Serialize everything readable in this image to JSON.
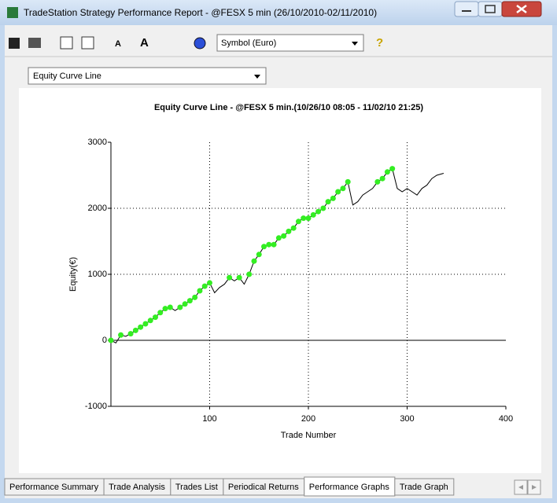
{
  "window": {
    "title": "TradeStation Strategy Performance Report - @FESX 5 min (26/10/2010-02/11/2010)"
  },
  "toolbar": {
    "symbol_select": "Symbol (Euro)"
  },
  "view_select": "Equity Curve Line",
  "chart_data": {
    "type": "line",
    "title": "Equity Curve Line - @FESX 5 min.(10/26/10 08:05 - 11/02/10 21:25)",
    "x_label": "Trade Number",
    "y_label": "Equity(€)",
    "x": [
      0,
      5,
      10,
      15,
      20,
      25,
      30,
      35,
      40,
      45,
      50,
      55,
      60,
      65,
      70,
      75,
      80,
      85,
      90,
      95,
      100,
      105,
      110,
      115,
      120,
      125,
      130,
      135,
      140,
      145,
      150,
      155,
      160,
      165,
      170,
      175,
      180,
      185,
      190,
      195,
      200,
      205,
      210,
      215,
      220,
      225,
      230,
      235,
      240,
      245,
      250,
      255,
      260,
      265,
      270,
      275,
      280,
      285,
      290,
      295,
      300,
      305,
      310,
      315,
      320,
      325,
      330,
      337
    ],
    "values": [
      0,
      -40,
      80,
      60,
      100,
      150,
      200,
      250,
      300,
      350,
      420,
      480,
      500,
      450,
      500,
      550,
      600,
      650,
      750,
      820,
      870,
      720,
      800,
      850,
      950,
      900,
      950,
      850,
      1000,
      1200,
      1300,
      1420,
      1450,
      1450,
      1550,
      1580,
      1650,
      1700,
      1800,
      1850,
      1850,
      1900,
      1950,
      2000,
      2100,
      2150,
      2250,
      2300,
      2400,
      2050,
      2100,
      2200,
      2250,
      2300,
      2400,
      2450,
      2550,
      2600,
      2300,
      2250,
      2300,
      2250,
      2200,
      2300,
      2350,
      2450,
      2500,
      2530
    ],
    "color": "#000000",
    "highlight_color": "#33ee22",
    "xlim": [
      0,
      400
    ],
    "xticks": [
      100,
      200,
      300,
      400
    ],
    "ylim": [
      -1000,
      3000
    ],
    "yticks": [
      -1000,
      0,
      1000,
      2000,
      3000
    ],
    "grid": true
  },
  "tabs": [
    "Performance Summary",
    "Trade Analysis",
    "Trades List",
    "Periodical Returns",
    "Performance Graphs",
    "Trade Graph"
  ]
}
